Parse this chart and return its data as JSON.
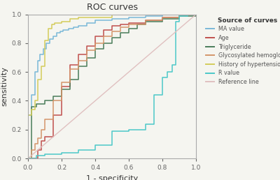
{
  "title": "ROC curves",
  "xlabel": "1 - specificity",
  "ylabel": "sensitivity",
  "legend_title": "Source of curves",
  "colors": {
    "MA value": "#7ab8d8",
    "Age": "#c0504d",
    "Triglyceride": "#4a7c59",
    "Glycosylated hemoglobin": "#d4956a",
    "History of hypertension": "#d4cc5a",
    "R value": "#4cc8c8",
    "Reference line": "#e0c0c0"
  },
  "background_color": "#f5f5f0",
  "ma_value": {
    "x": [
      0.0,
      0.0,
      0.02,
      0.04,
      0.06,
      0.07,
      0.09,
      0.11,
      0.13,
      0.15,
      0.17,
      0.19,
      0.21,
      0.24,
      0.27,
      0.3,
      0.35,
      0.4,
      0.5,
      0.6,
      0.7,
      0.8,
      0.9,
      1.0
    ],
    "y": [
      0.0,
      0.3,
      0.44,
      0.6,
      0.68,
      0.72,
      0.76,
      0.8,
      0.83,
      0.85,
      0.87,
      0.88,
      0.89,
      0.9,
      0.91,
      0.92,
      0.94,
      0.96,
      0.97,
      0.98,
      0.99,
      1.0,
      1.0,
      1.0
    ]
  },
  "age": {
    "x": [
      0.0,
      0.04,
      0.06,
      0.08,
      0.1,
      0.15,
      0.2,
      0.25,
      0.3,
      0.35,
      0.4,
      0.45,
      0.5,
      0.55,
      0.6,
      0.7,
      0.8,
      0.9,
      1.0
    ],
    "y": [
      0.0,
      0.0,
      0.06,
      0.12,
      0.15,
      0.3,
      0.5,
      0.65,
      0.72,
      0.78,
      0.85,
      0.89,
      0.92,
      0.93,
      0.94,
      0.96,
      0.98,
      1.0,
      1.0
    ]
  },
  "triglyceride": {
    "x": [
      0.0,
      0.02,
      0.05,
      0.1,
      0.15,
      0.2,
      0.25,
      0.3,
      0.35,
      0.4,
      0.45,
      0.5,
      0.55,
      0.6,
      0.65,
      0.7,
      0.8,
      0.9,
      1.0
    ],
    "y": [
      0.0,
      0.36,
      0.38,
      0.4,
      0.43,
      0.48,
      0.55,
      0.64,
      0.7,
      0.76,
      0.8,
      0.84,
      0.87,
      0.9,
      0.93,
      0.95,
      0.97,
      0.99,
      1.0
    ]
  },
  "glyco_hemo": {
    "x": [
      0.0,
      0.02,
      0.04,
      0.06,
      0.08,
      0.1,
      0.15,
      0.2,
      0.25,
      0.3,
      0.35,
      0.4,
      0.45,
      0.5,
      0.55,
      0.6,
      0.7,
      0.8,
      0.9,
      1.0
    ],
    "y": [
      0.0,
      0.06,
      0.1,
      0.14,
      0.2,
      0.27,
      0.4,
      0.53,
      0.62,
      0.68,
      0.75,
      0.8,
      0.85,
      0.88,
      0.91,
      0.93,
      0.96,
      0.98,
      1.0,
      1.0
    ]
  },
  "hypertension": {
    "x": [
      0.0,
      0.0,
      0.02,
      0.04,
      0.06,
      0.08,
      0.1,
      0.12,
      0.14,
      0.16,
      0.2,
      0.25,
      0.3,
      0.5,
      0.7,
      1.0
    ],
    "y": [
      0.0,
      0.3,
      0.34,
      0.4,
      0.55,
      0.64,
      0.82,
      0.9,
      0.93,
      0.94,
      0.95,
      0.97,
      0.98,
      1.0,
      1.0,
      1.0
    ]
  },
  "r_value": {
    "x": [
      0.0,
      0.05,
      0.1,
      0.2,
      0.3,
      0.4,
      0.5,
      0.6,
      0.7,
      0.75,
      0.8,
      0.83,
      0.86,
      0.88,
      0.9,
      0.95,
      1.0
    ],
    "y": [
      0.0,
      0.02,
      0.03,
      0.04,
      0.06,
      0.09,
      0.19,
      0.2,
      0.24,
      0.44,
      0.56,
      0.6,
      0.65,
      0.95,
      0.99,
      1.0,
      1.0
    ]
  }
}
